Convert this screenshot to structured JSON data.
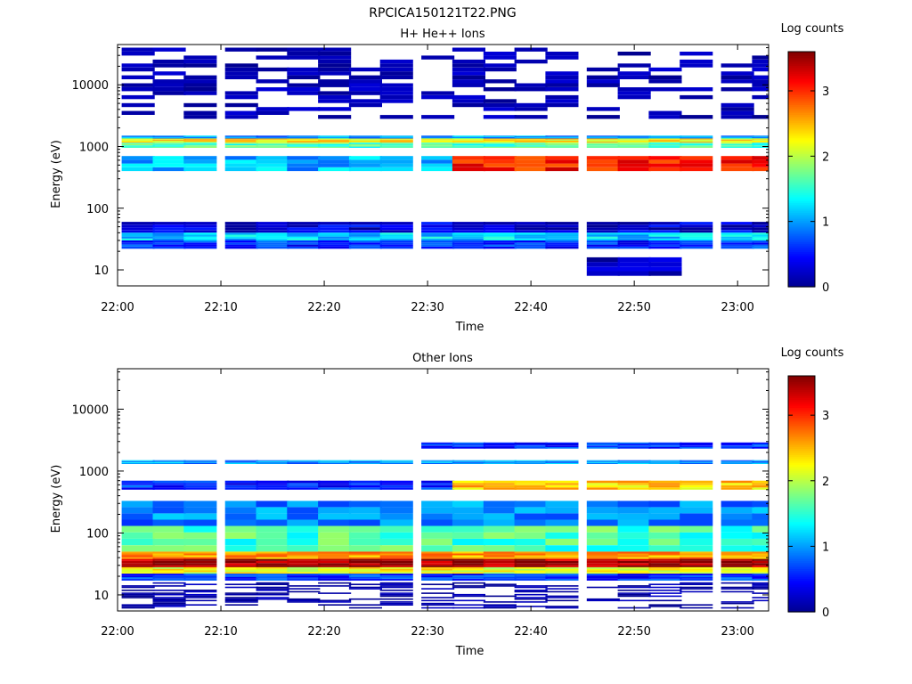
{
  "page_title": "RPCICA150121T22.PNG",
  "colormap": [
    "#00008f",
    "#0000ff",
    "#0080ff",
    "#00ffff",
    "#80ff80",
    "#ffff00",
    "#ff8000",
    "#ff0000",
    "#800000"
  ],
  "chart_data": [
    {
      "type": "heatmap",
      "title": "H+ He++ Ions",
      "xlabel": "Time",
      "ylabel": "Energy (eV)",
      "colorbar_label": "Log counts",
      "colorbar_range": [
        0,
        3.6
      ],
      "colorbar_ticks": [
        "0",
        "1",
        "2",
        "3"
      ],
      "x_range": [
        "22:00",
        "23:03"
      ],
      "x_ticks": [
        "22:00",
        "22:10",
        "22:20",
        "22:30",
        "22:40",
        "22:50",
        "23:00"
      ],
      "y_scale": "log",
      "y_range": [
        5.5,
        45000
      ],
      "y_ticks": [
        "10",
        "100",
        "1000",
        "10000"
      ],
      "columns": [
        "22:02",
        "22:05",
        "22:08",
        "22:12",
        "22:15",
        "22:18",
        "22:21",
        "22:24",
        "22:27",
        "22:31",
        "22:34",
        "22:37",
        "22:40",
        "22:43",
        "22:47",
        "22:50",
        "22:53",
        "22:56",
        "23:00",
        "23:03"
      ],
      "bands": [
        {
          "energy": [
            2800,
            40000
          ],
          "level": 0.15,
          "description": "sparse low counts"
        },
        {
          "energy": [
            1350,
            1500
          ],
          "level": 1.0
        },
        {
          "energy": [
            1150,
            1350
          ],
          "level": 2.3
        },
        {
          "energy": [
            950,
            1150
          ],
          "level": 1.6
        },
        {
          "energy": [
            400,
            700
          ],
          "level": 1.1,
          "after": "22:34",
          "level_after": 3.1
        },
        {
          "energy": [
            40,
            60
          ],
          "level": 0.3
        },
        {
          "energy": [
            30,
            40
          ],
          "level": 1.2
        },
        {
          "energy": [
            22,
            30
          ],
          "level": 0.6
        },
        {
          "energy": [
            8,
            16
          ],
          "level": 0.1,
          "from": "22:47",
          "to": "22:53"
        }
      ]
    },
    {
      "type": "heatmap",
      "title": "Other Ions",
      "xlabel": "Time",
      "ylabel": "Energy (eV)",
      "colorbar_label": "Log counts",
      "colorbar_range": [
        0,
        3.6
      ],
      "colorbar_ticks": [
        "0",
        "1",
        "2",
        "3"
      ],
      "x_range": [
        "22:00",
        "23:03"
      ],
      "x_ticks": [
        "22:00",
        "22:10",
        "22:20",
        "22:30",
        "22:40",
        "22:50",
        "23:00"
      ],
      "y_scale": "log",
      "y_range": [
        5.5,
        45000
      ],
      "y_ticks": [
        "10",
        "100",
        "1000",
        "10000"
      ],
      "columns": [
        "22:02",
        "22:05",
        "22:08",
        "22:12",
        "22:15",
        "22:18",
        "22:21",
        "22:24",
        "22:27",
        "22:31",
        "22:34",
        "22:37",
        "22:40",
        "22:43",
        "22:47",
        "22:50",
        "22:53",
        "22:56",
        "23:00",
        "23:03"
      ],
      "bands": [
        {
          "energy": [
            1300,
            1500
          ],
          "level": 1.0
        },
        {
          "energy": [
            2300,
            2900
          ],
          "level": 0.6,
          "after": "22:28"
        },
        {
          "energy": [
            500,
            700
          ],
          "level": 0.6,
          "after": "22:34",
          "level_after": 2.4
        },
        {
          "energy": [
            130,
            330
          ],
          "level": 0.9
        },
        {
          "energy": [
            50,
            130
          ],
          "level": 1.6
        },
        {
          "energy": [
            38,
            50
          ],
          "level": 2.6
        },
        {
          "energy": [
            28,
            38
          ],
          "level": 3.5
        },
        {
          "energy": [
            22,
            28
          ],
          "level": 2.2
        },
        {
          "energy": [
            17,
            22
          ],
          "level": 0.6
        },
        {
          "energy": [
            6,
            16
          ],
          "level": 0.1,
          "description": "sparse low counts"
        }
      ]
    }
  ]
}
